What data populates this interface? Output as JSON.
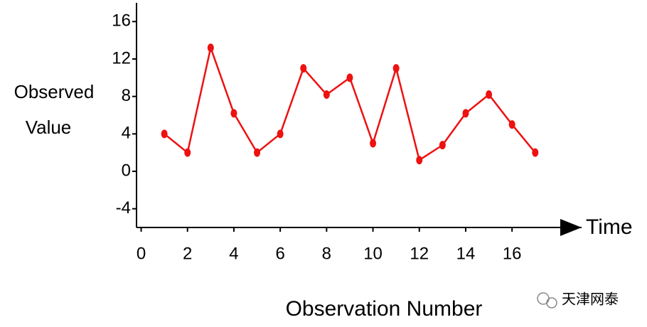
{
  "chart_data": {
    "type": "line",
    "ylabel_lines": [
      "Observed",
      "Value"
    ],
    "xlabel": "Observation Number",
    "axis_arrow_label": "Time",
    "watermark": "天津网泰",
    "x": [
      1,
      2,
      3,
      4,
      5,
      6,
      7,
      8,
      9,
      10,
      11,
      12,
      13,
      14,
      15,
      16,
      17
    ],
    "series": [
      {
        "color": "#ee1111",
        "values": [
          4,
          2,
          13.2,
          6.2,
          2,
          4,
          11,
          8.2,
          10,
          3,
          11,
          1.2,
          2.8,
          6.2,
          8.2,
          5,
          2
        ]
      }
    ],
    "xlim": [
      -0.2,
      19
    ],
    "xticks": [
      0,
      2,
      4,
      6,
      8,
      10,
      12,
      14,
      16
    ],
    "ylim": [
      -6,
      18
    ],
    "yticks": [
      -4,
      0,
      4,
      8,
      12,
      16
    ]
  }
}
